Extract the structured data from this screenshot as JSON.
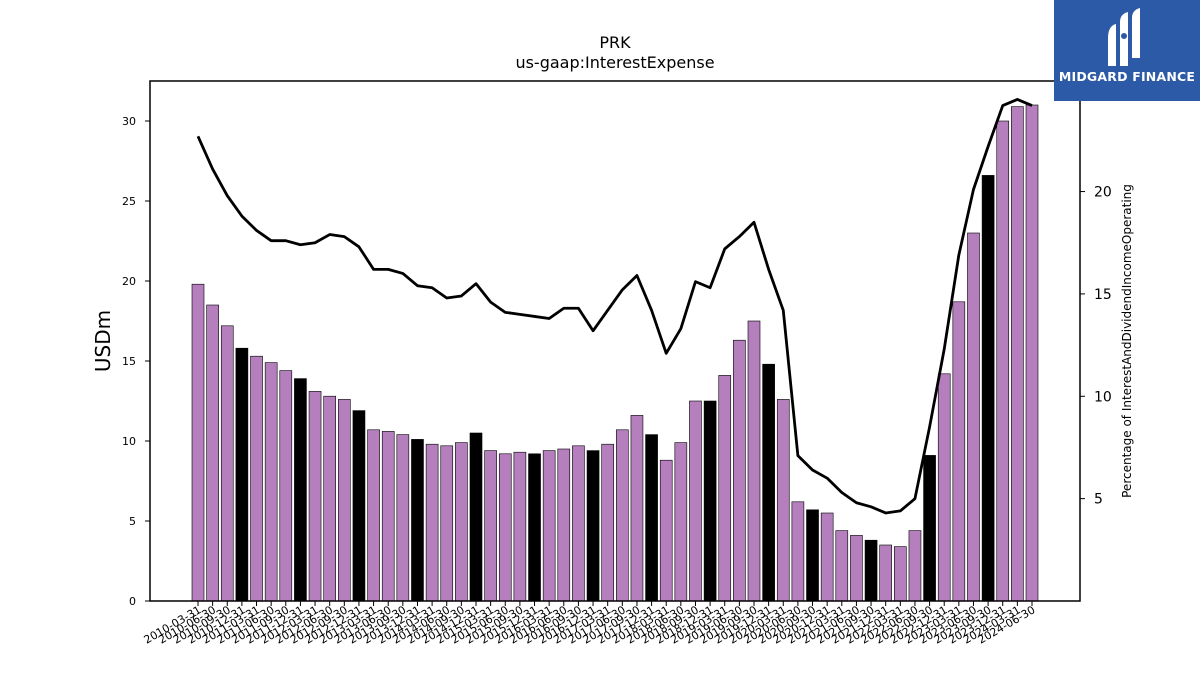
{
  "chart_data": {
    "type": "bar+line",
    "title": "PRK",
    "subtitle": "us-gaap:InterestExpense",
    "ylabel": "USDm",
    "y2label": "Percentage of InterestAndDividendIncomeOperating",
    "ylim": [
      0,
      32.5
    ],
    "y2lim": [
      0,
      25.4
    ],
    "yticks": [
      0,
      5,
      10,
      15,
      20,
      25,
      30
    ],
    "y2ticks": [
      5,
      10,
      15,
      20
    ],
    "grid": false,
    "bar_colors": {
      "quarter": "#b57fbe",
      "year_end": "#000000"
    },
    "line_color": "#000000",
    "categories": [
      "2010-03-31",
      "2010-06-30",
      "2010-09-30",
      "2010-12-31",
      "2011-03-31",
      "2011-06-30",
      "2011-09-30",
      "2011-12-31",
      "2012-03-31",
      "2012-06-30",
      "2012-09-30",
      "2012-12-31",
      "2013-03-31",
      "2013-06-30",
      "2013-09-30",
      "2013-12-31",
      "2014-03-31",
      "2014-06-30",
      "2014-09-30",
      "2014-12-31",
      "2015-03-31",
      "2015-06-30",
      "2015-09-30",
      "2015-12-31",
      "2016-03-31",
      "2016-06-30",
      "2016-09-30",
      "2016-12-31",
      "2017-03-31",
      "2017-06-30",
      "2017-09-30",
      "2017-12-31",
      "2018-03-31",
      "2018-06-30",
      "2018-09-30",
      "2018-12-31",
      "2019-03-31",
      "2019-06-30",
      "2019-09-30",
      "2019-12-31",
      "2020-03-31",
      "2020-06-30",
      "2020-09-30",
      "2020-12-31",
      "2021-03-31",
      "2021-06-30",
      "2021-09-30",
      "2021-12-31",
      "2022-03-31",
      "2022-06-30",
      "2022-09-30",
      "2022-12-31",
      "2023-03-31",
      "2023-06-30",
      "2023-09-30",
      "2023-12-31",
      "2024-03-31",
      "2024-06-30"
    ],
    "series": [
      {
        "kind": "bar",
        "values": [
          19.8,
          18.5,
          17.2,
          15.8,
          15.3,
          14.9,
          14.4,
          13.9,
          13.1,
          12.8,
          12.6,
          11.9,
          10.7,
          10.6,
          10.4,
          10.1,
          9.8,
          9.7,
          9.9,
          10.5,
          9.4,
          9.2,
          9.3,
          9.2,
          9.4,
          9.5,
          9.7,
          9.4,
          9.8,
          10.7,
          11.6,
          10.4,
          8.8,
          9.9,
          12.5,
          12.5,
          14.1,
          16.3,
          17.5,
          14.8,
          12.6,
          6.2,
          5.7,
          5.5,
          4.4,
          4.1,
          3.8,
          3.5,
          3.4,
          4.4,
          9.1,
          14.2,
          18.7,
          23.0,
          26.6,
          30.0,
          30.9,
          31.0
        ],
        "year_end": [
          false,
          false,
          false,
          true,
          false,
          false,
          false,
          true,
          false,
          false,
          false,
          true,
          false,
          false,
          false,
          true,
          false,
          false,
          false,
          true,
          false,
          false,
          false,
          true,
          false,
          false,
          false,
          true,
          false,
          false,
          false,
          true,
          false,
          false,
          false,
          true,
          false,
          false,
          false,
          true,
          false,
          false,
          true,
          false,
          false,
          false,
          true,
          false,
          false,
          false,
          true,
          false,
          false,
          false,
          true,
          false,
          false,
          false
        ]
      },
      {
        "kind": "line",
        "axis": "right",
        "values": [
          22.7,
          21.1,
          19.8,
          18.8,
          18.1,
          17.6,
          17.6,
          17.4,
          17.5,
          17.9,
          17.8,
          17.3,
          16.2,
          16.2,
          16.0,
          15.4,
          15.3,
          14.8,
          14.9,
          15.5,
          14.6,
          14.1,
          14.0,
          13.9,
          13.8,
          14.3,
          14.3,
          13.2,
          14.2,
          15.2,
          15.9,
          14.2,
          12.1,
          13.3,
          15.6,
          15.3,
          17.2,
          17.8,
          18.5,
          16.2,
          14.2,
          7.1,
          6.4,
          6.0,
          5.3,
          4.8,
          4.6,
          4.3,
          4.4,
          5.0,
          8.5,
          12.3,
          16.9,
          20.1,
          22.2,
          24.2,
          24.5,
          24.2
        ]
      }
    ]
  },
  "logo": {
    "name": "MIDGARD FINANCE"
  }
}
